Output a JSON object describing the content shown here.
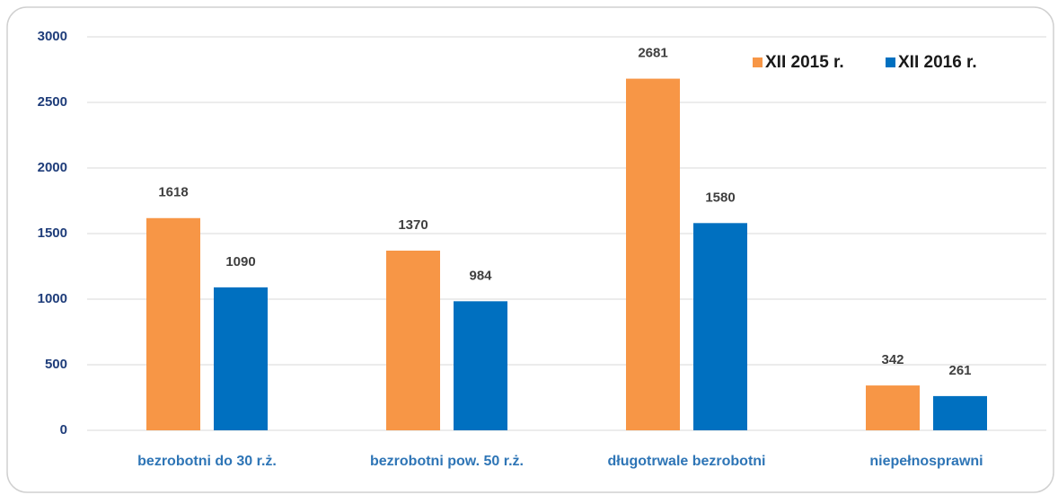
{
  "chart_data": {
    "type": "bar",
    "categories": [
      "bezrobotni do 30 r.ż.",
      "bezrobotni pow. 50 r.ż.",
      "długotrwale bezrobotni",
      "niepełnosprawni"
    ],
    "series": [
      {
        "name": "XII 2015 r.",
        "color": "#f79646",
        "values": [
          1618,
          1370,
          2681,
          342
        ]
      },
      {
        "name": "XII 2016 r.",
        "color": "#0070c0",
        "values": [
          1090,
          984,
          1580,
          261
        ]
      }
    ],
    "ylim": [
      0,
      3000
    ],
    "yticks": [
      0,
      500,
      1000,
      1500,
      2000,
      2500,
      3000
    ],
    "grid": true,
    "legend": "top-right"
  }
}
